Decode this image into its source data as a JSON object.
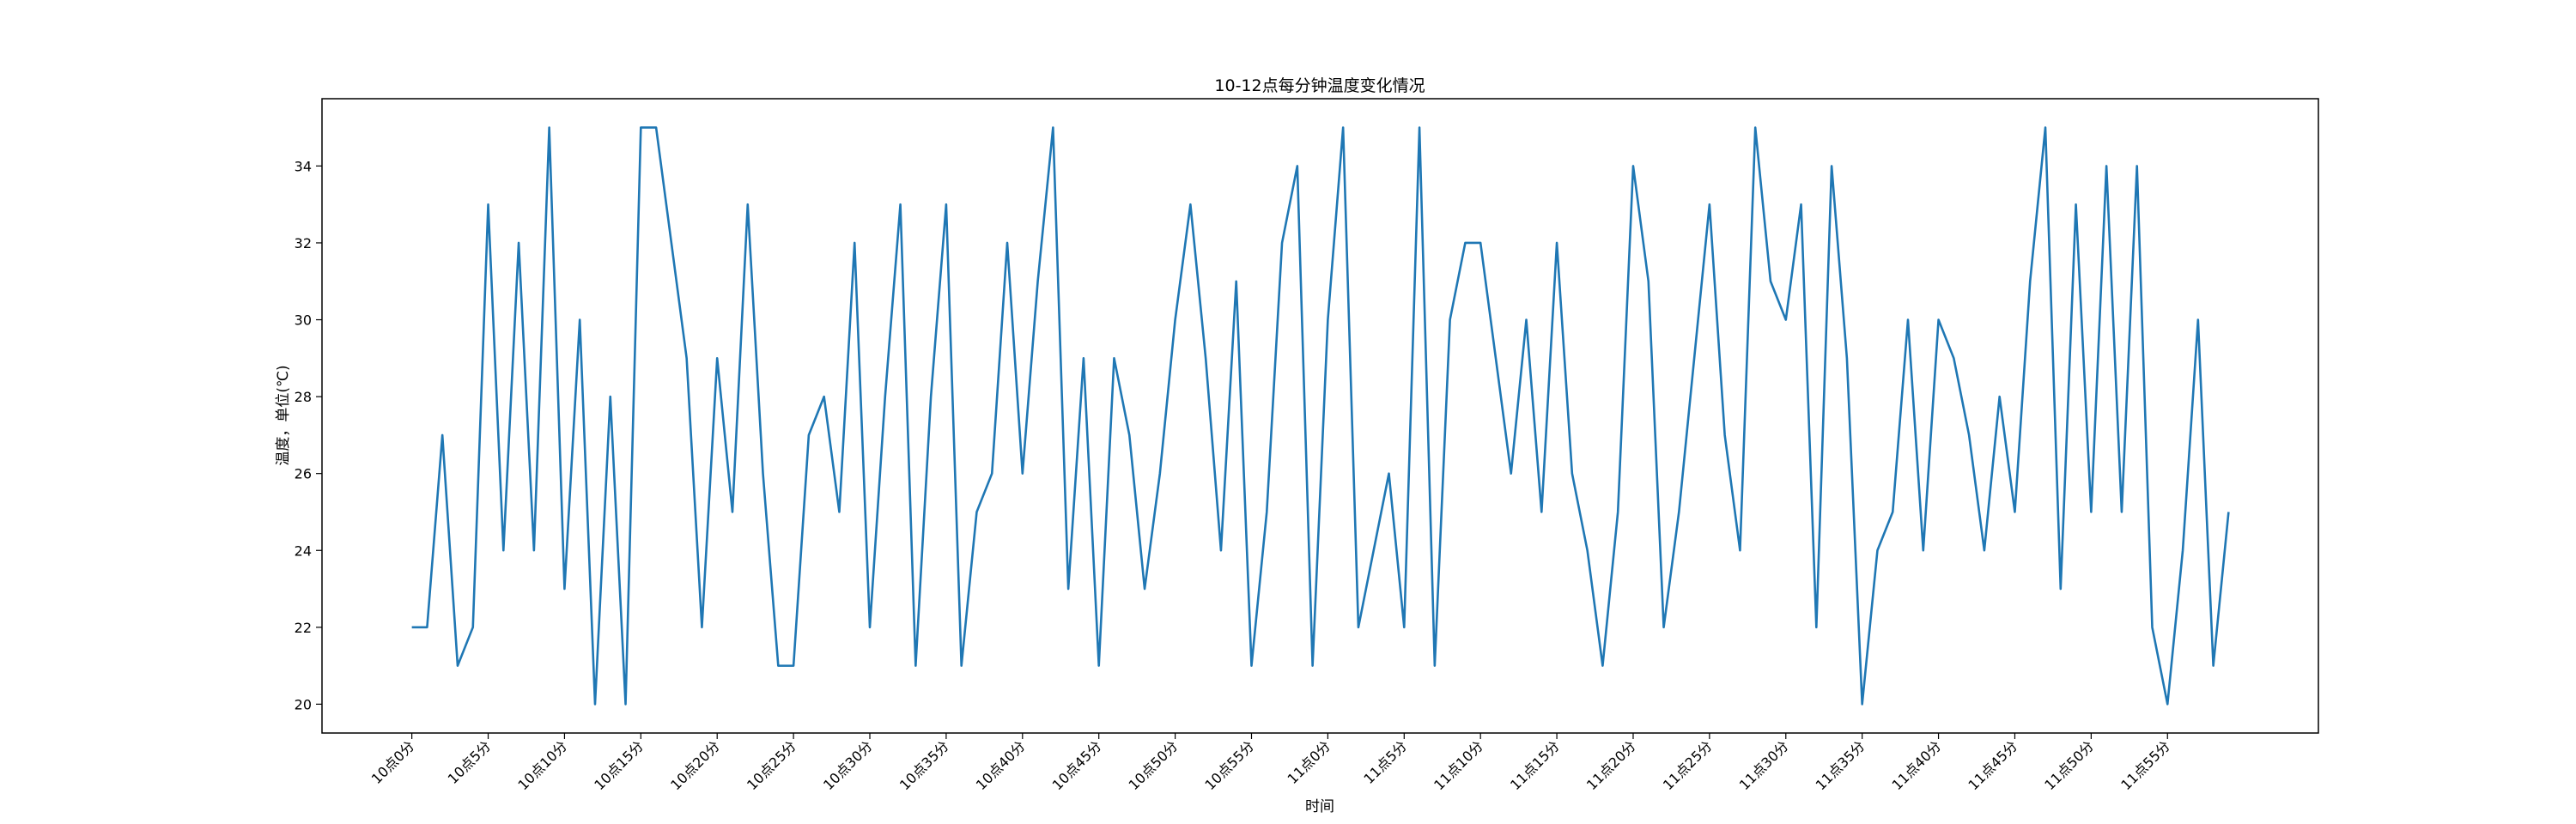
{
  "chart_data": {
    "type": "line",
    "title": "10-12点每分钟温度变化情况",
    "xlabel": "时间",
    "ylabel": "温度，单位(℃)",
    "ylim": [
      19.25,
      35.75
    ],
    "yticks": [
      20,
      22,
      24,
      26,
      28,
      30,
      32,
      34
    ],
    "xticks": [
      "10点0分",
      "10点5分",
      "10点10分",
      "10点15分",
      "10点20分",
      "10点25分",
      "10点30分",
      "10点35分",
      "10点40分",
      "10点45分",
      "10点50分",
      "10点55分",
      "11点0分",
      "11点5分",
      "11点10分",
      "11点15分",
      "11点20分",
      "11点25分",
      "11点30分",
      "11点35分",
      "11点40分",
      "11点45分",
      "11点50分",
      "11点55分"
    ],
    "grid": false,
    "line_color": "#1f77b4",
    "series": [
      {
        "values": [
          22,
          22,
          27,
          21,
          22,
          33,
          24,
          32,
          24,
          35,
          23,
          30,
          20,
          28,
          20,
          35,
          35,
          32,
          29,
          22,
          29,
          25,
          33,
          26,
          21,
          21,
          27,
          28,
          25,
          32,
          22,
          28,
          33,
          21,
          28,
          33,
          21,
          25,
          26,
          32,
          26,
          31,
          35,
          23,
          29,
          21,
          29,
          27,
          23,
          26,
          30,
          33,
          29,
          24,
          31,
          21,
          25,
          32,
          34,
          21,
          30,
          35,
          22,
          24,
          26,
          22,
          35,
          21,
          30,
          32,
          32,
          29,
          26,
          30,
          25,
          32,
          26,
          24,
          21,
          25,
          34,
          31,
          22,
          25,
          29,
          33,
          27,
          24,
          35,
          31,
          30,
          33,
          22,
          34,
          29,
          20,
          24,
          25,
          30,
          24,
          30,
          29,
          27,
          24,
          28,
          25,
          31,
          35,
          23,
          33,
          25,
          34,
          25,
          34,
          22,
          20,
          24,
          30,
          21,
          25
        ]
      }
    ]
  }
}
